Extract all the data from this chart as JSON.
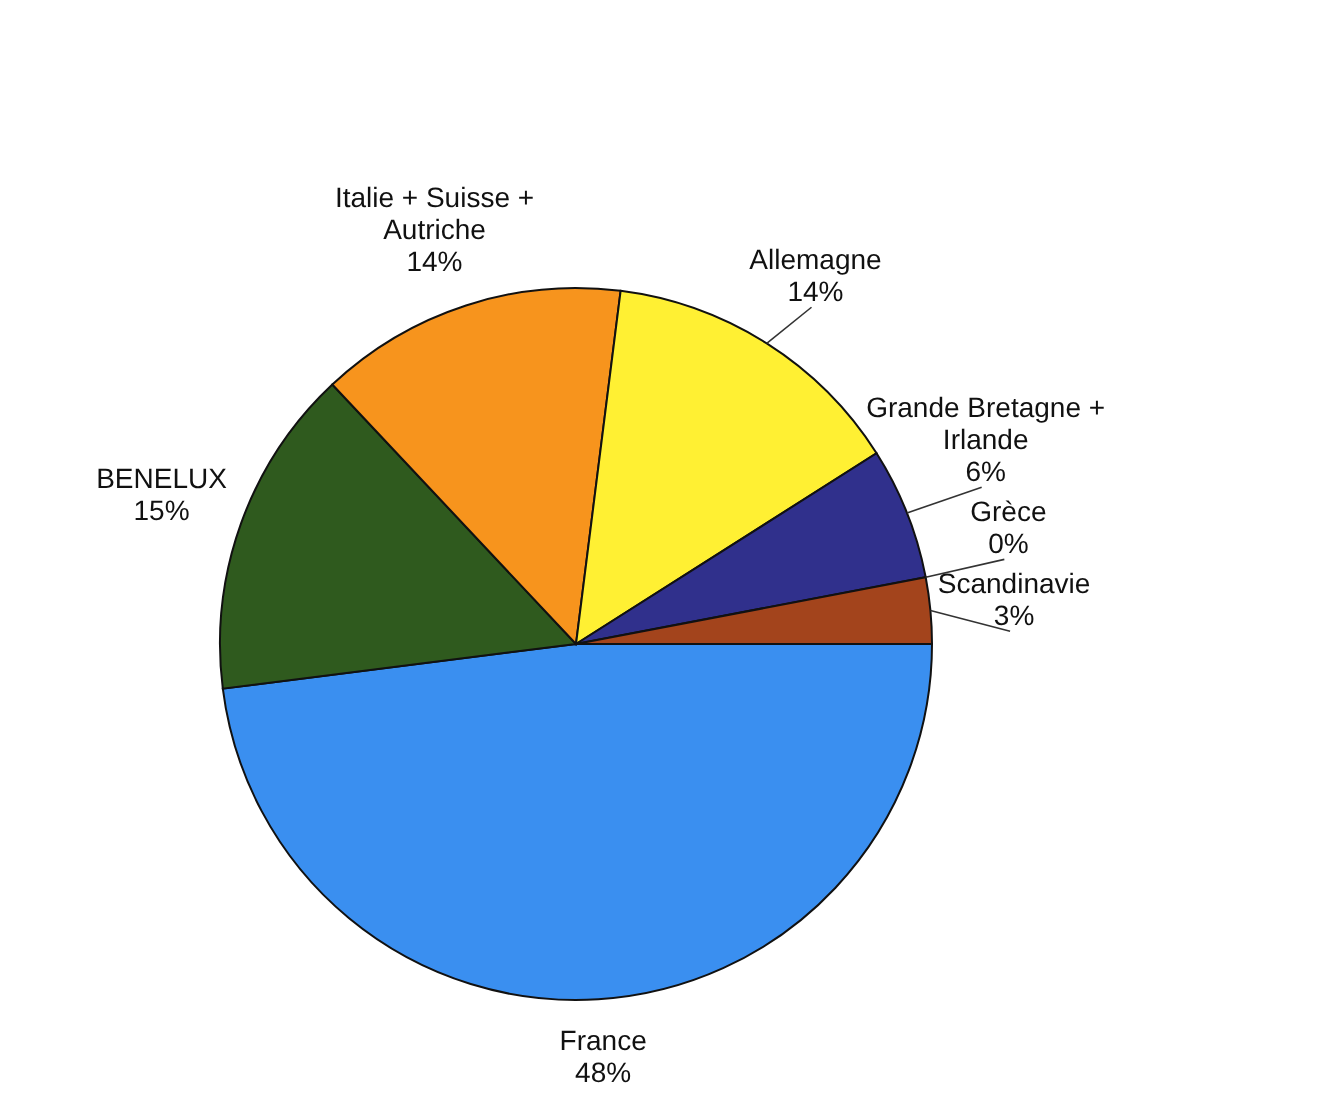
{
  "chart_data": {
    "type": "pie",
    "categories": [
      "France",
      "BENELUX",
      "Italie + Suisse + Autriche",
      "Allemagne",
      "Grande Bretagne + Irlande",
      "Grèce",
      "Scandinavie"
    ],
    "values": [
      48,
      15,
      14,
      14,
      6,
      0,
      3
    ],
    "value_labels": [
      "48%",
      "15%",
      "14%",
      "14%",
      "6%",
      "0%",
      "3%"
    ],
    "colors": [
      "#3a8ff0",
      "#2f5a1e",
      "#f7941d",
      "#fff033",
      "#30308c",
      "#6a6aa0",
      "#a3441c"
    ]
  }
}
